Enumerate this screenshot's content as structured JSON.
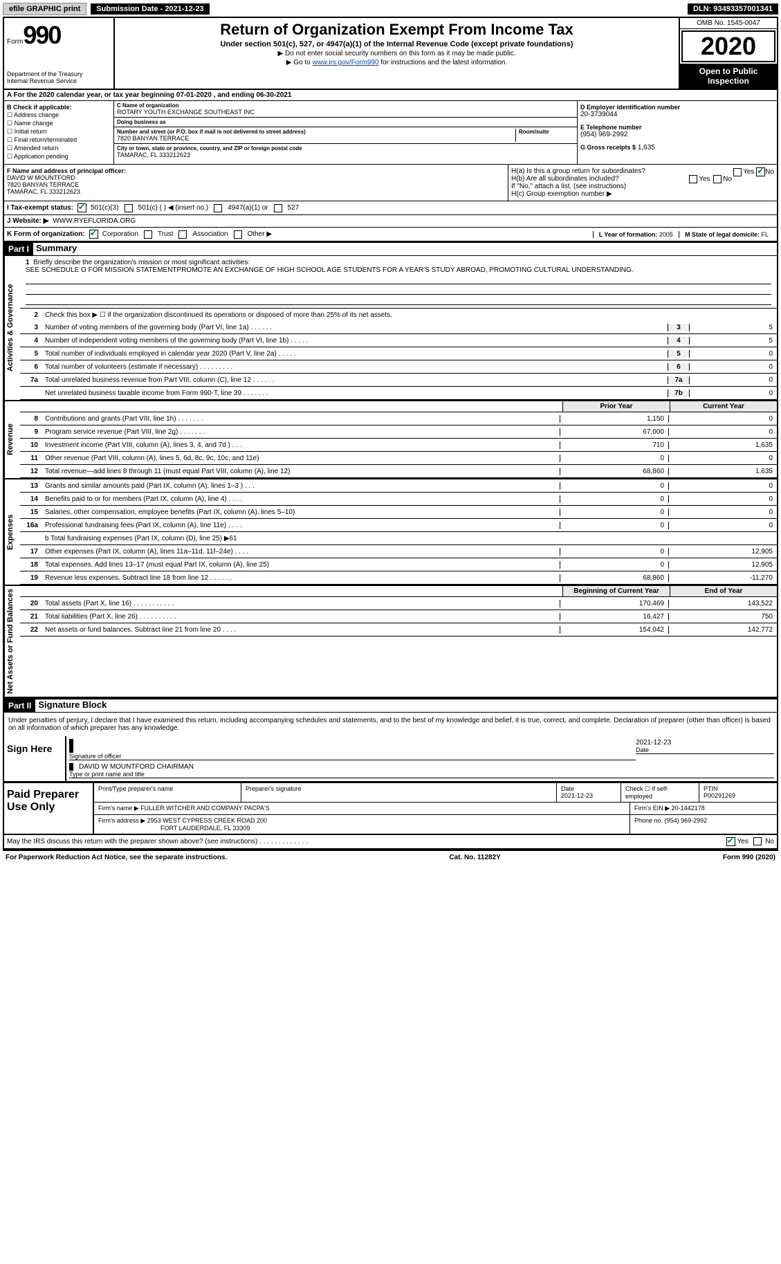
{
  "topbar": {
    "efile": "efile GRAPHIC print",
    "submission": "Submission Date - 2021-12-23",
    "dln": "DLN: 93493357001341"
  },
  "header": {
    "form_label": "Form",
    "form_num": "990",
    "dept": "Department of the Treasury\nInternal Revenue Service",
    "title": "Return of Organization Exempt From Income Tax",
    "sub": "Under section 501(c), 527, or 4947(a)(1) of the Internal Revenue Code (except private foundations)",
    "note1": "▶ Do not enter social security numbers on this form as it may be made public.",
    "note2_pre": "▶ Go to ",
    "note2_link": "www.irs.gov/Form990",
    "note2_post": " for instructions and the latest information.",
    "omb": "OMB No. 1545-0047",
    "year": "2020",
    "inspect": "Open to Public Inspection"
  },
  "period": "For the 2020 calendar year, or tax year beginning 07-01-2020   , and ending 06-30-2021",
  "box_b": {
    "label": "B Check if applicable:",
    "items": [
      "Address change",
      "Name change",
      "Initial return",
      "Final return/terminated",
      "Amended return",
      "Application pending"
    ]
  },
  "box_c": {
    "name_lbl": "C Name of organization",
    "name": "ROTARY YOUTH EXCHANGE SOUTHEAST INC",
    "dba_lbl": "Doing business as",
    "dba": "",
    "addr_lbl": "Number and street (or P.O. box if mail is not delivered to street address)",
    "room_lbl": "Room/suite",
    "addr": "7820 BANYAN TERRACE",
    "city_lbl": "City or town, state or province, country, and ZIP or foreign postal code",
    "city": "TAMARAC, FL  333212623"
  },
  "box_d": {
    "lbl": "D Employer identification number",
    "val": "20-3739044"
  },
  "box_e": {
    "lbl": "E Telephone number",
    "val": "(954) 969-2992"
  },
  "box_g": {
    "lbl": "G Gross receipts $",
    "val": "1,635"
  },
  "box_f": {
    "lbl": "F Name and address of principal officer:",
    "name": "DAVID W MOUNTFORD",
    "addr1": "7820 BANYAN TERRACE",
    "addr2": "TAMARAC, FL  333212623"
  },
  "box_h": {
    "ha": "H(a)  Is this a group return for subordinates?",
    "ha_yes": "Yes",
    "ha_no": "No",
    "hb": "H(b)  Are all subordinates included?",
    "hb_yes": "Yes",
    "hb_no": "No",
    "hb_note": "If \"No,\" attach a list. (see instructions)",
    "hc": "H(c)  Group exemption number ▶"
  },
  "box_i": {
    "lbl": "I   Tax-exempt status:",
    "opt1": "501(c)(3)",
    "opt2": "501(c) (   ) ◀ (insert no.)",
    "opt3": "4947(a)(1) or",
    "opt4": "527"
  },
  "box_j": {
    "lbl": "J   Website: ▶",
    "val": "WWW.RYEFLORIDA.ORG"
  },
  "box_k": {
    "lbl": "K Form of organization:",
    "opts": [
      "Corporation",
      "Trust",
      "Association",
      "Other ▶"
    ],
    "l_lbl": "L Year of formation:",
    "l_val": "2005",
    "m_lbl": "M State of legal domicile:",
    "m_val": "FL"
  },
  "part1": {
    "tag": "Part I",
    "title": "Summary",
    "side_gov": "Activities & Governance",
    "side_rev": "Revenue",
    "side_exp": "Expenses",
    "side_net": "Net Assets or Fund Balances",
    "l1_lbl": "Briefly describe the organization's mission or most significant activities:",
    "l1_txt": "SEE SCHEDULE O FOR MISSION STATEMENTPROMOTE AN EXCHANGE OF HIGH SCHOOL AGE STUDENTS FOR A YEAR'S STUDY ABROAD, PROMOTING CULTURAL UNDERSTANDING.",
    "l2": "Check this box ▶ ☐  if the organization discontinued its operations or disposed of more than 25% of its net assets.",
    "rows_single": [
      {
        "n": "3",
        "d": "Number of voting members of the governing body (Part VI, line 1a)   .     .     .     .     .     .",
        "b": "3",
        "v": "5"
      },
      {
        "n": "4",
        "d": "Number of independent voting members of the governing body (Part VI, line 1b)   .     .     .     .     .",
        "b": "4",
        "v": "5"
      },
      {
        "n": "5",
        "d": "Total number of individuals employed in calendar year 2020 (Part V, line 2a)   .     .     .     .     .",
        "b": "5",
        "v": "0"
      },
      {
        "n": "6",
        "d": "Total number of volunteers (estimate if necessary)   .     .     .     .     .     .     .     .     .",
        "b": "6",
        "v": "0"
      },
      {
        "n": "7a",
        "d": "Total unrelated business revenue from Part VIII, column (C), line 12   .     .     .     .     .     .",
        "b": "7a",
        "v": "0"
      },
      {
        "n": "",
        "d": "Net unrelated business taxable income from Form 990-T, line 39   .     .     .     .     .     .     .",
        "b": "7b",
        "v": "0"
      }
    ],
    "col_prior": "Prior Year",
    "col_curr": "Current Year",
    "rows_rev": [
      {
        "n": "8",
        "d": "Contributions and grants (Part VIII, line 1h)   .     .     .     .     .     .     .",
        "p": "1,150",
        "c": "0"
      },
      {
        "n": "9",
        "d": "Program service revenue (Part VIII, line 2g)   .     .     .     .     .     .     .",
        "p": "67,000",
        "c": "0"
      },
      {
        "n": "10",
        "d": "Investment income (Part VIII, column (A), lines 3, 4, and 7d )   .     .     .",
        "p": "710",
        "c": "1,635"
      },
      {
        "n": "11",
        "d": "Other revenue (Part VIII, column (A), lines 5, 6d, 8c, 9c, 10c, and 11e)",
        "p": "0",
        "c": "0"
      },
      {
        "n": "12",
        "d": "Total revenue—add lines 8 through 11 (must equal Part VIII, column (A), line 12)",
        "p": "68,860",
        "c": "1,635"
      }
    ],
    "rows_exp": [
      {
        "n": "13",
        "d": "Grants and similar amounts paid (Part IX, column (A), lines 1–3 )   .     .     .",
        "p": "0",
        "c": "0"
      },
      {
        "n": "14",
        "d": "Benefits paid to or for members (Part IX, column (A), line 4)   .     .     .     .",
        "p": "0",
        "c": "0"
      },
      {
        "n": "15",
        "d": "Salaries, other compensation, employee benefits (Part IX, column (A), lines 5–10)",
        "p": "0",
        "c": "0"
      },
      {
        "n": "16a",
        "d": "Professional fundraising fees (Part IX, column (A), line 11e)   .     .     .     .",
        "p": "0",
        "c": "0"
      }
    ],
    "l16b": "b  Total fundraising expenses (Part IX, column (D), line 25) ▶61",
    "rows_exp2": [
      {
        "n": "17",
        "d": "Other expenses (Part IX, column (A), lines 11a–11d, 11f–24e)   .     .     .     .",
        "p": "0",
        "c": "12,905"
      },
      {
        "n": "18",
        "d": "Total expenses. Add lines 13–17 (must equal Part IX, column (A), line 25)",
        "p": "0",
        "c": "12,905"
      },
      {
        "n": "19",
        "d": "Revenue less expenses. Subtract line 18 from line 12   .     .     .     .     .     .",
        "p": "68,860",
        "c": "-11,270"
      }
    ],
    "col_beg": "Beginning of Current Year",
    "col_end": "End of Year",
    "rows_net": [
      {
        "n": "20",
        "d": "Total assets (Part X, line 16)   .     .     .     .     .     .     .     .     .     .     .",
        "p": "170,469",
        "c": "143,522"
      },
      {
        "n": "21",
        "d": "Total liabilities (Part X, line 26)   .     .     .     .     .     .     .     .     .     .",
        "p": "16,427",
        "c": "750"
      },
      {
        "n": "22",
        "d": "Net assets or fund balances. Subtract line 21 from line 20   .     .     .     .",
        "p": "154,042",
        "c": "142,772"
      }
    ]
  },
  "part2": {
    "tag": "Part II",
    "title": "Signature Block",
    "decl": "Under penalties of perjury, I declare that I have examined this return, including accompanying schedules and statements, and to the best of my knowledge and belief, it is true, correct, and complete. Declaration of preparer (other than officer) is based on all information of which preparer has any knowledge.",
    "sign_here": "Sign Here",
    "sig_officer": "Signature of officer",
    "sig_date_lbl": "Date",
    "sig_date": "2021-12-23",
    "officer_name": "DAVID W MOUNTFORD  CHAIRMAN",
    "type_name": "Type or print name and title",
    "paid_prep": "Paid Preparer Use Only",
    "pp_name_lbl": "Print/Type preparer's name",
    "pp_sig_lbl": "Preparer's signature",
    "pp_date_lbl": "Date",
    "pp_date": "2021-12-23",
    "pp_check_lbl": "Check ☐ if self-employed",
    "pp_ptin_lbl": "PTIN",
    "pp_ptin": "P00291269",
    "firm_name_lbl": "Firm's name    ▶",
    "firm_name": "FULLER WITCHER AND COMPANY PACPA'S",
    "firm_ein_lbl": "Firm's EIN ▶",
    "firm_ein": "20-1442178",
    "firm_addr_lbl": "Firm's address ▶",
    "firm_addr1": "2953 WEST CYPRESS CREEK ROAD 200",
    "firm_addr2": "FORT LAUDERDALE, FL  33309",
    "firm_phone_lbl": "Phone no.",
    "firm_phone": "(954) 969-2992",
    "discuss": "May the IRS discuss this return with the preparer shown above? (see instructions)   .     .     .     .     .     .     .     .     .     .     .     .     .",
    "discuss_yes": "Yes",
    "discuss_no": "No"
  },
  "footer": {
    "l": "For Paperwork Reduction Act Notice, see the separate instructions.",
    "m": "Cat. No. 11282Y",
    "r": "Form 990 (2020)"
  }
}
